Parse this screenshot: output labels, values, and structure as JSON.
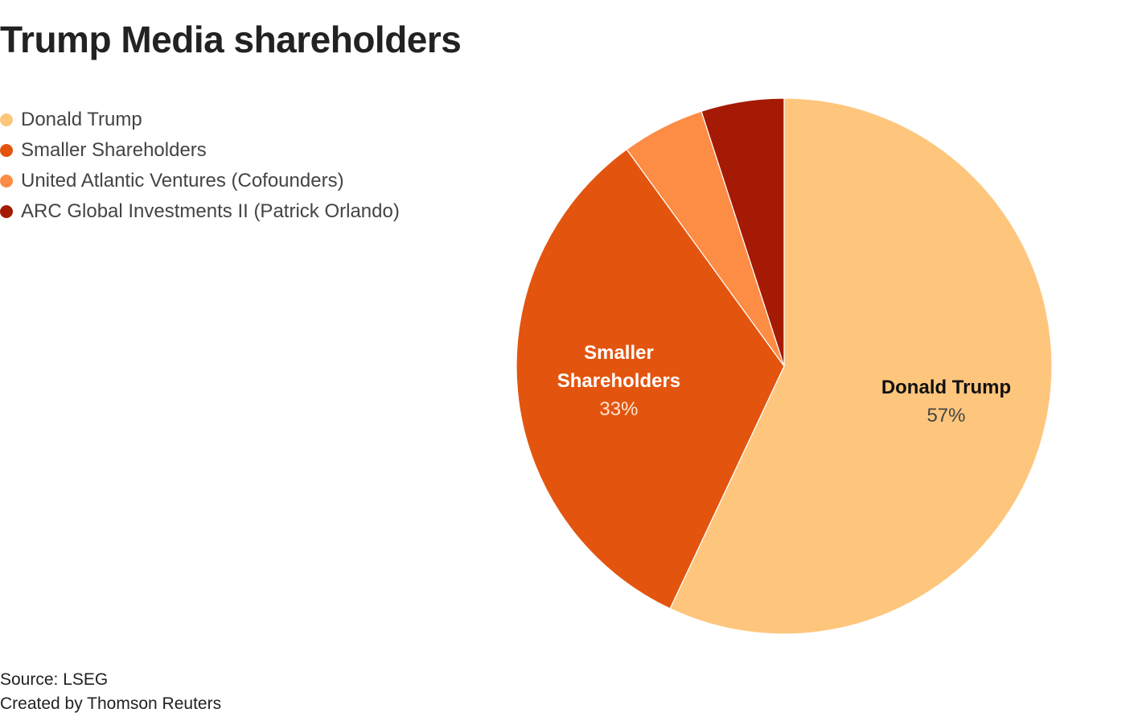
{
  "chart_data": {
    "type": "pie",
    "title": "Trump Media shareholders",
    "categories": [
      "Donald Trump",
      "Smaller Shareholders",
      "United Atlantic Ventures (Cofounders)",
      "ARC Global Investments II (Patrick Orlando)"
    ],
    "values": [
      57,
      33,
      5,
      5
    ],
    "colors": [
      "#fec67d",
      "#e3550f",
      "#fd8c45",
      "#a51a04"
    ],
    "legend": "top-left",
    "slice_labels": [
      {
        "lines": [
          "Donald Trump"
        ],
        "value": "57%",
        "name_color": "#111111",
        "value_color": "#444444"
      },
      {
        "lines": [
          "Smaller",
          "Shareholders"
        ],
        "value": "33%",
        "name_color": "#ffffff",
        "value_color": "#ffe5d2"
      }
    ]
  },
  "footer": {
    "source": "Source: LSEG",
    "credit": "Created by Thomson Reuters"
  }
}
